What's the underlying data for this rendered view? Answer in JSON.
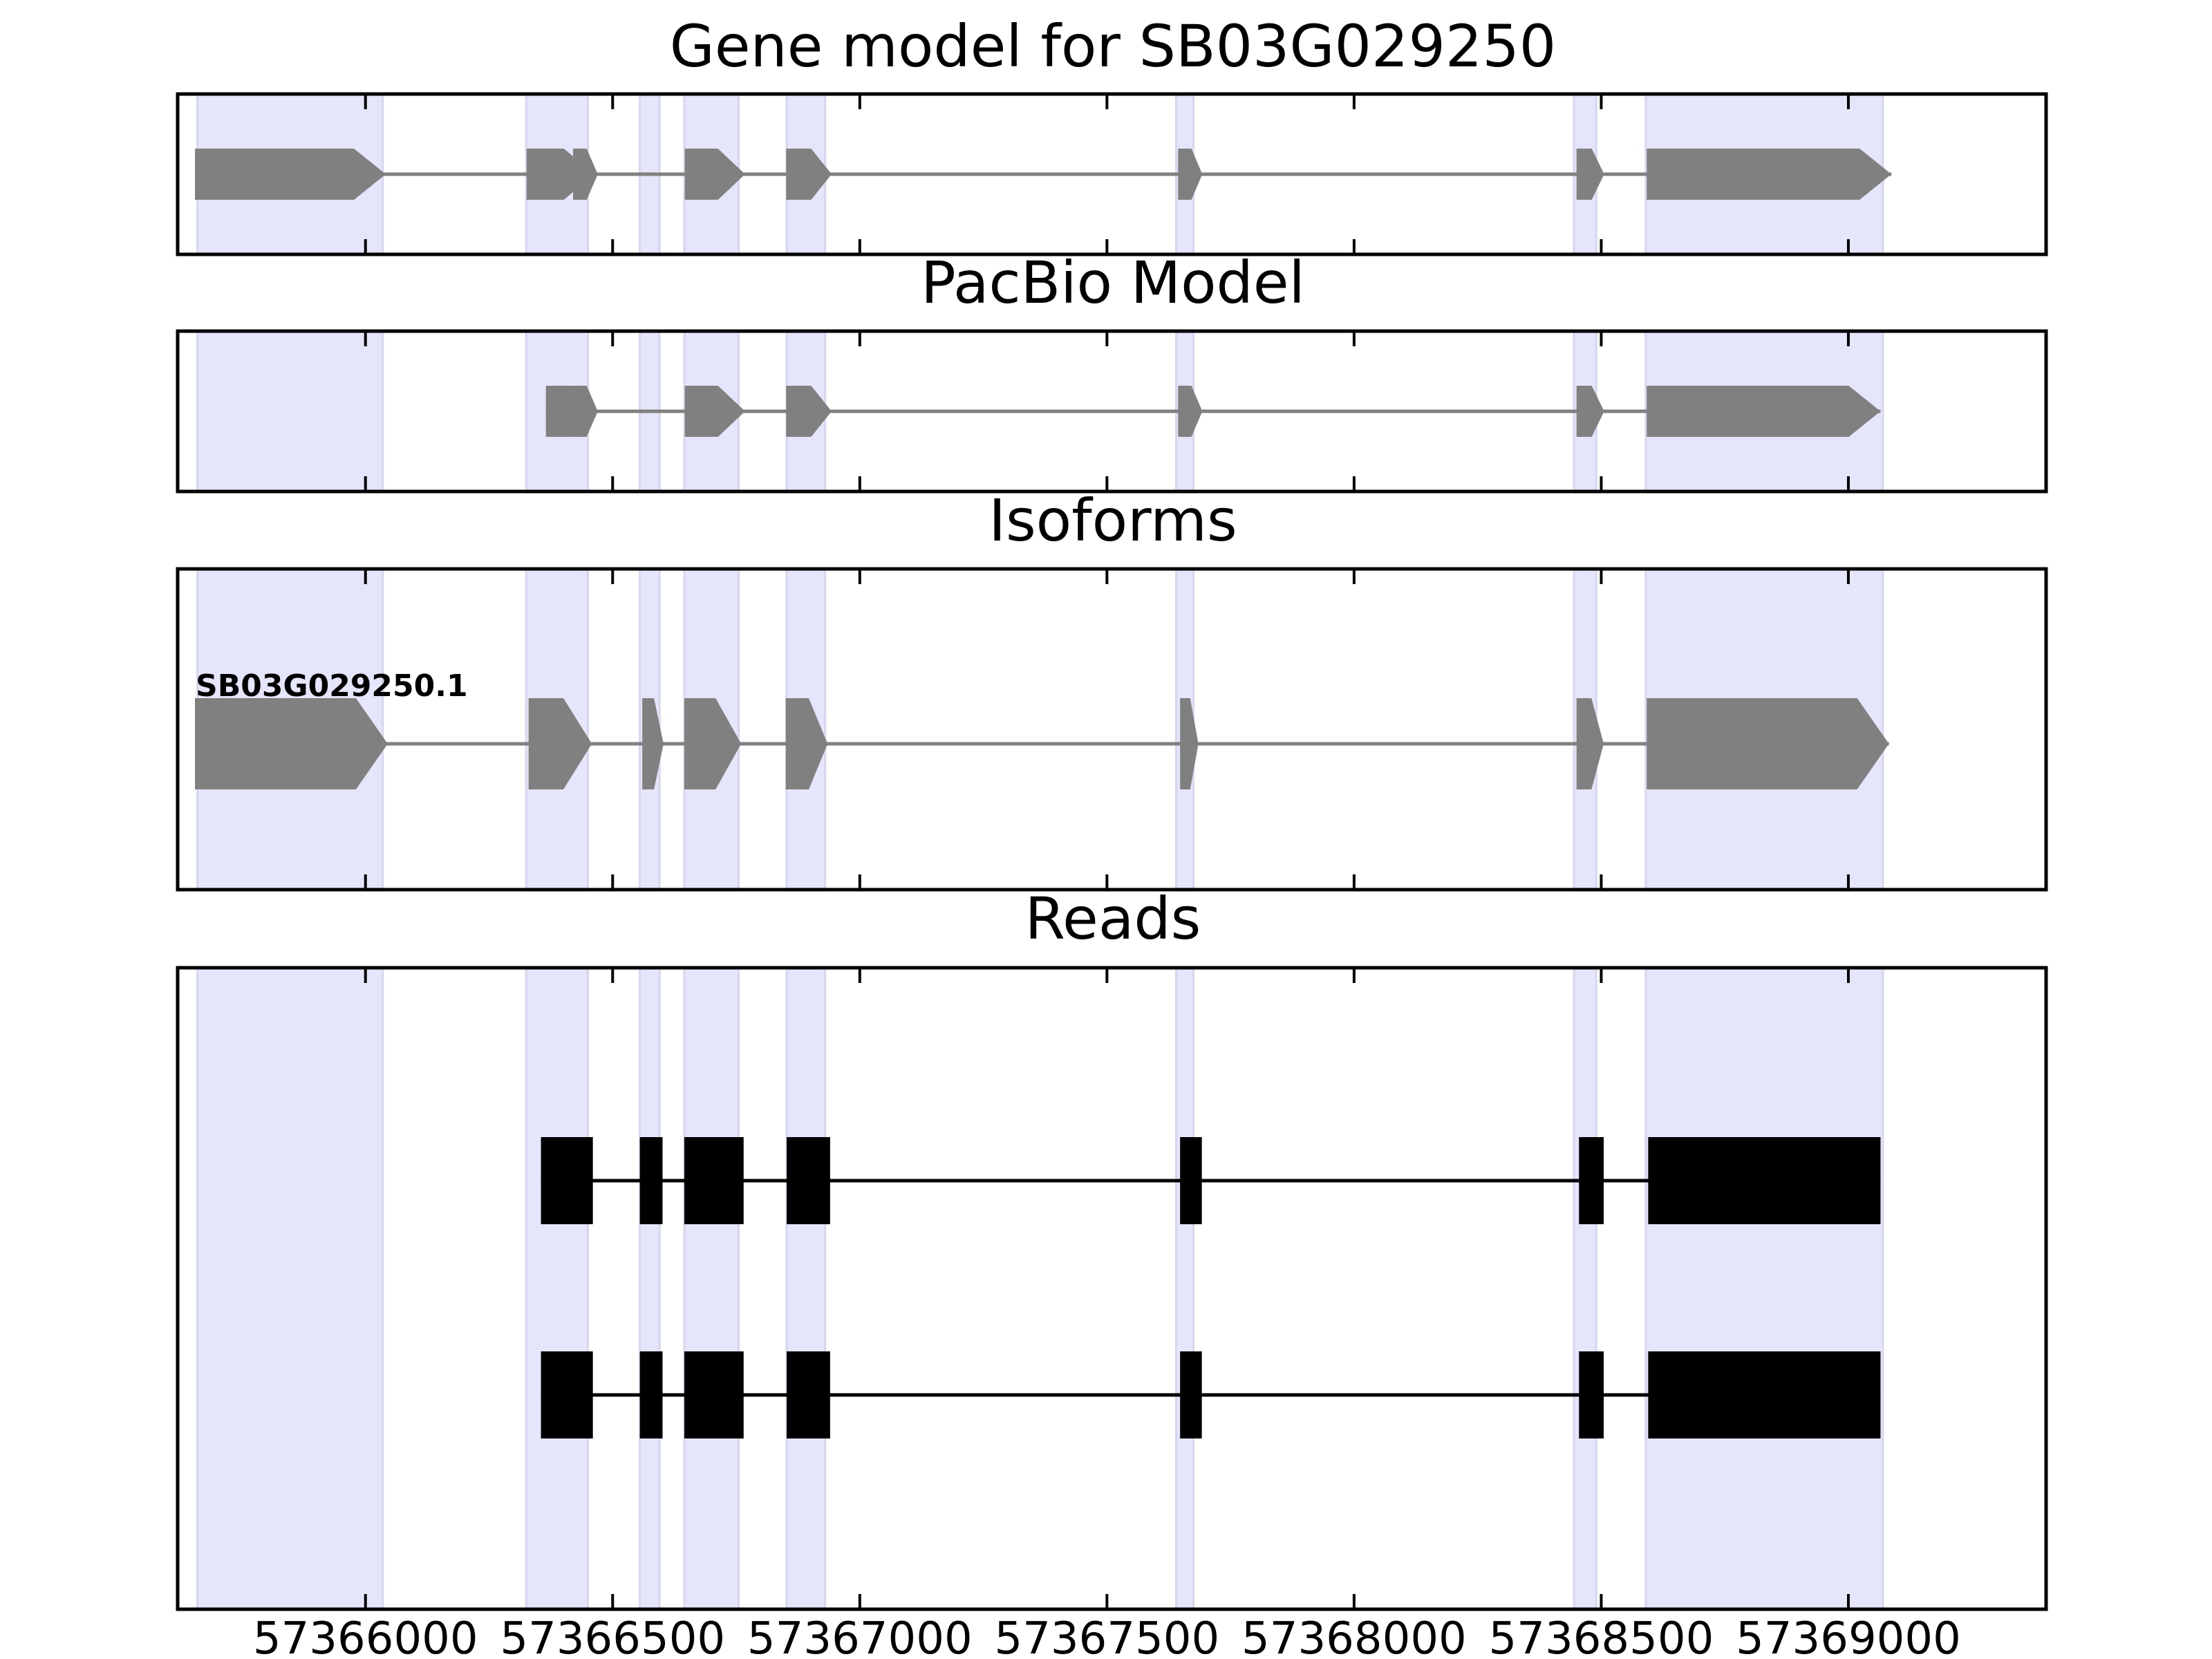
{
  "colors": {
    "exon_band": "#e5e5fb",
    "exon_band_edge": "#d6d6ef",
    "gene_shape": "#808080",
    "intron_line": "#808080",
    "read_block": "#000000",
    "read_line": "#000000",
    "frame": "#000000"
  },
  "chart_data": [
    {
      "type": "gene-track",
      "title": "Gene model for SB03G029250",
      "xlim": [
        57365620,
        57369400
      ],
      "strand": "+",
      "exons": [
        [
          57365658,
          57366036
        ],
        [
          57366320,
          57366445
        ],
        [
          57366420,
          57366490
        ],
        [
          57366640,
          57366730
        ],
        [
          57366900,
          57366950
        ],
        [
          57367695,
          57367720
        ],
        [
          57368500,
          57368530
        ],
        [
          57368650,
          57369100
        ]
      ],
      "shape_exons": [
        [
          57365655,
          57366041
        ],
        [
          57366326,
          57366463
        ],
        [
          57366420,
          57366470
        ],
        [
          57366646,
          57366768
        ],
        [
          57366851,
          57366943
        ],
        [
          57367644,
          57367693
        ],
        [
          57368450,
          57368506
        ],
        [
          57368592,
          57369087
        ]
      ]
    },
    {
      "type": "gene-track",
      "title": "PacBio Model",
      "xlim": [
        57365620,
        57369400
      ],
      "strand": "+",
      "shape_exons": [
        [
          57366365,
          57366463
        ],
        [
          57366420,
          57366470
        ],
        [
          57366646,
          57366768
        ],
        [
          57366851,
          57366943
        ],
        [
          57367644,
          57367693
        ],
        [
          57368450,
          57368506
        ],
        [
          57368592,
          57369065
        ]
      ]
    },
    {
      "type": "gene-track",
      "title": "Isoforms",
      "xlim": [
        57365620,
        57369400
      ],
      "strand": "+",
      "isoforms": [
        {
          "name": "SB03G029250.1",
          "exons": [
            [
              57365655,
              57366045
            ],
            [
              57366330,
              57366458
            ],
            [
              57366560,
              57366603
            ],
            [
              57366645,
              57366760
            ],
            [
              57366850,
              57366935
            ],
            [
              57367648,
              57367685
            ],
            [
              57368450,
              57368505
            ],
            [
              57368592,
              57369082
            ]
          ]
        }
      ]
    },
    {
      "type": "read-track",
      "title": "Reads",
      "xlim": [
        57365620,
        57369400
      ],
      "xticks": [
        57366000,
        57366500,
        57367000,
        57367500,
        57368000,
        57368500,
        57369000
      ],
      "xticklabels": [
        "57366000",
        "57366500",
        "57367000",
        "57367500",
        "57368000",
        "57368500",
        "57369000"
      ],
      "reads": [
        {
          "blocks": [
            [
              57366355,
              57366460
            ],
            [
              57366555,
              57366601
            ],
            [
              57366645,
              57366765
            ],
            [
              57366852,
              57366940
            ],
            [
              57367648,
              57367692
            ],
            [
              57368455,
              57368505
            ],
            [
              57368595,
              57369065
            ]
          ]
        },
        {
          "blocks": [
            [
              57366355,
              57366460
            ],
            [
              57366555,
              57366601
            ],
            [
              57366645,
              57366765
            ],
            [
              57366852,
              57366940
            ],
            [
              57367648,
              57367692
            ],
            [
              57368455,
              57368505
            ],
            [
              57368595,
              57369065
            ]
          ]
        }
      ]
    }
  ],
  "highlight_bands": [
    [
      57365660,
      57366035
    ],
    [
      57366325,
      57366450
    ],
    [
      57366555,
      57366595
    ],
    [
      57366645,
      57366755
    ],
    [
      57366852,
      57366930
    ],
    [
      57367640,
      57367675
    ],
    [
      57368445,
      57368490
    ],
    [
      57368590,
      57369070
    ]
  ]
}
